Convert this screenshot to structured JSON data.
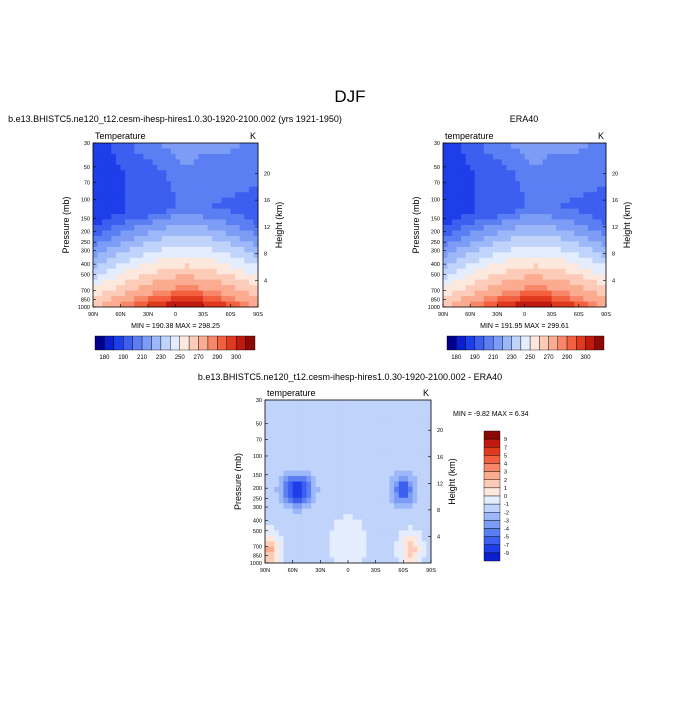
{
  "page": {
    "title": "DJF"
  },
  "chart_data": [
    {
      "type": "heatmap",
      "id": "model",
      "title": "b.e13.BHISTC5.ne120_t12.cesm-ihesp-hires1.0.30-1920-2100.002 (yrs 1921-1950)",
      "left_label": "Temperature",
      "right_label": "K",
      "ylabel": "Pressure (mb)",
      "right_axis_label": "Height (km)",
      "x_ticks": [
        "90N",
        "60N",
        "30N",
        "0",
        "30S",
        "60S",
        "90S"
      ],
      "y_ticks": [
        "30",
        "50",
        "70",
        "100",
        "150",
        "200",
        "250",
        "300",
        "400",
        "500",
        "700",
        "850",
        "1000"
      ],
      "height_ticks": [
        "4",
        "8",
        "12",
        "16",
        "20"
      ],
      "min": 190.38,
      "max": 298.25,
      "stats_text": "MIN = 190.38   MAX = 298.25",
      "levels": [
        180,
        190,
        210,
        230,
        250,
        270,
        290,
        300
      ],
      "colorbar_labels": [
        "180",
        "190",
        "210",
        "230",
        "250",
        "270",
        "290",
        "300"
      ]
    },
    {
      "type": "heatmap",
      "id": "era40",
      "title": "ERA40",
      "left_label": "temperature",
      "right_label": "K",
      "ylabel": "Pressure (mb)",
      "right_axis_label": "Height (km)",
      "x_ticks": [
        "90N",
        "60N",
        "30N",
        "0",
        "30S",
        "60S",
        "90S"
      ],
      "y_ticks": [
        "30",
        "50",
        "70",
        "100",
        "150",
        "200",
        "250",
        "300",
        "400",
        "500",
        "700",
        "850",
        "1000"
      ],
      "height_ticks": [
        "4",
        "8",
        "12",
        "16",
        "20"
      ],
      "min": 191.95,
      "max": 299.61,
      "stats_text": "MIN = 191.95   MAX = 299.61",
      "levels": [
        180,
        190,
        210,
        230,
        250,
        270,
        290,
        300
      ],
      "colorbar_labels": [
        "180",
        "190",
        "210",
        "230",
        "250",
        "270",
        "290",
        "300"
      ]
    },
    {
      "type": "heatmap",
      "id": "difference",
      "title": "b.e13.BHISTC5.ne120_t12.cesm-ihesp-hires1.0.30-1920-2100.002 - ERA40",
      "left_label": "temperature",
      "right_label": "K",
      "ylabel": "Pressure (mb)",
      "right_axis_label": "Height (km)",
      "x_ticks": [
        "90N",
        "60N",
        "30N",
        "0",
        "30S",
        "60S",
        "90S"
      ],
      "y_ticks": [
        "30",
        "50",
        "70",
        "100",
        "150",
        "200",
        "250",
        "300",
        "400",
        "500",
        "700",
        "850",
        "1000"
      ],
      "height_ticks": [
        "4",
        "8",
        "12",
        "16",
        "20"
      ],
      "min": -9.82,
      "max": 6.34,
      "stats_text": "MIN =  -9.82  MAX =   6.34",
      "levels": [
        -9,
        -7,
        -5,
        -4,
        -3,
        -2,
        -1,
        0,
        1,
        2,
        3,
        4,
        5,
        7,
        9
      ],
      "colorbar_labels": [
        "9",
        "7",
        "5",
        "4",
        "3",
        "2",
        "1",
        "0",
        "-1",
        "-2",
        "-3",
        "-4",
        "-5",
        "-7",
        "-9"
      ]
    }
  ],
  "colors": {
    "temp_scale": [
      "#00008a",
      "#0a1fd0",
      "#1d3ee8",
      "#3c5ff0",
      "#5b7ff3",
      "#7c9cf6",
      "#9db8f9",
      "#c0d3fb",
      "#e4edfd",
      "#fde8de",
      "#fcccb8",
      "#fbab8f",
      "#f8876a",
      "#f2603f",
      "#e03a1e",
      "#c01a10",
      "#8c0a05"
    ],
    "diff_scale": [
      "#8c0a05",
      "#c01a10",
      "#e03a1e",
      "#f2603f",
      "#f8876a",
      "#fbab8f",
      "#fcccb8",
      "#fde8de",
      "#e4edfd",
      "#c0d3fb",
      "#9db8f9",
      "#7c9cf6",
      "#5b7ff3",
      "#3c5ff0",
      "#1d3ee8",
      "#0a1fd0"
    ]
  }
}
